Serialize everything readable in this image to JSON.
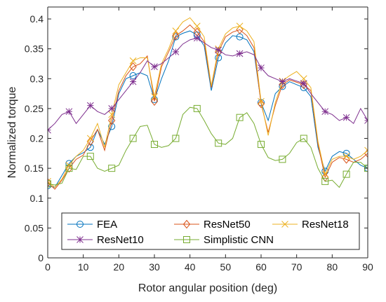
{
  "chart_data": {
    "type": "line",
    "title": "",
    "xlabel": "Rotor angular position (deg)",
    "ylabel": "Normalized torque",
    "xlim": [
      0,
      90
    ],
    "ylim": [
      0,
      0.42
    ],
    "xticks": [
      0,
      10,
      20,
      30,
      40,
      50,
      60,
      70,
      80,
      90
    ],
    "xtick_labels": [
      "0",
      "10",
      "20",
      "30",
      "40",
      "50",
      "60",
      "70",
      "80",
      "90"
    ],
    "yticks": [
      0,
      0.05,
      0.1,
      0.15,
      0.2,
      0.25,
      0.3,
      0.35,
      0.4
    ],
    "ytick_labels": [
      "0",
      "0.05",
      "0.1",
      "0.15",
      "0.2",
      "0.25",
      "0.3",
      "0.35",
      "0.4"
    ],
    "grid": false,
    "legend": "bottom, inside plot, 3 columns",
    "x": [
      0,
      2,
      4,
      6,
      8,
      10,
      12,
      14,
      16,
      18,
      20,
      22,
      24,
      26,
      28,
      30,
      32,
      34,
      36,
      38,
      40,
      42,
      44,
      46,
      48,
      50,
      52,
      54,
      56,
      58,
      60,
      62,
      64,
      66,
      68,
      70,
      72,
      74,
      76,
      78,
      80,
      82,
      84,
      86,
      88,
      90
    ],
    "series": [
      {
        "name": "FEA",
        "color": "#0072BD",
        "marker": "circle",
        "marker_every": 3,
        "values": [
          0.121,
          0.118,
          0.138,
          0.158,
          0.17,
          0.176,
          0.185,
          0.215,
          0.19,
          0.22,
          0.275,
          0.3,
          0.305,
          0.31,
          0.305,
          0.265,
          0.3,
          0.33,
          0.37,
          0.376,
          0.38,
          0.373,
          0.355,
          0.28,
          0.335,
          0.36,
          0.372,
          0.37,
          0.365,
          0.345,
          0.26,
          0.23,
          0.275,
          0.287,
          0.295,
          0.29,
          0.285,
          0.27,
          0.185,
          0.145,
          0.17,
          0.178,
          0.175,
          0.165,
          0.155,
          0.15
        ]
      },
      {
        "name": "ResNet50",
        "color": "#D95319",
        "marker": "diamond",
        "marker_every": 3,
        "values": [
          0.126,
          0.115,
          0.13,
          0.15,
          0.165,
          0.172,
          0.195,
          0.215,
          0.18,
          0.23,
          0.28,
          0.305,
          0.32,
          0.325,
          0.338,
          0.262,
          0.32,
          0.345,
          0.372,
          0.38,
          0.39,
          0.378,
          0.362,
          0.285,
          0.345,
          0.37,
          0.378,
          0.382,
          0.372,
          0.352,
          0.258,
          0.21,
          0.255,
          0.29,
          0.298,
          0.294,
          0.29,
          0.28,
          0.19,
          0.135,
          0.16,
          0.168,
          0.165,
          0.16,
          0.165,
          0.175
        ]
      },
      {
        "name": "ResNet18",
        "color": "#EDB120",
        "marker": "x",
        "marker_every": 3,
        "values": [
          0.128,
          0.118,
          0.132,
          0.155,
          0.17,
          0.18,
          0.2,
          0.225,
          0.185,
          0.24,
          0.29,
          0.31,
          0.33,
          0.335,
          0.335,
          0.27,
          0.325,
          0.35,
          0.38,
          0.395,
          0.402,
          0.388,
          0.37,
          0.288,
          0.35,
          0.375,
          0.385,
          0.388,
          0.38,
          0.362,
          0.262,
          0.205,
          0.26,
          0.296,
          0.305,
          0.312,
          0.3,
          0.285,
          0.195,
          0.14,
          0.165,
          0.17,
          0.17,
          0.165,
          0.17,
          0.18
        ]
      },
      {
        "name": "ResNet10",
        "color": "#7E2F8E",
        "marker": "asterisk",
        "marker_every": 3,
        "values": [
          0.214,
          0.225,
          0.24,
          0.245,
          0.225,
          0.24,
          0.255,
          0.245,
          0.24,
          0.25,
          0.265,
          0.28,
          0.295,
          0.31,
          0.33,
          0.32,
          0.325,
          0.335,
          0.345,
          0.358,
          0.365,
          0.368,
          0.36,
          0.352,
          0.348,
          0.34,
          0.338,
          0.342,
          0.345,
          0.34,
          0.318,
          0.305,
          0.3,
          0.295,
          0.3,
          0.296,
          0.292,
          0.275,
          0.26,
          0.245,
          0.24,
          0.23,
          0.235,
          0.225,
          0.25,
          0.23
        ]
      },
      {
        "name": "Simplistic CNN",
        "color": "#77AC30",
        "marker": "square",
        "marker_every": 3,
        "values": [
          0.124,
          0.122,
          0.125,
          0.15,
          0.148,
          0.17,
          0.17,
          0.15,
          0.145,
          0.15,
          0.155,
          0.18,
          0.2,
          0.22,
          0.222,
          0.19,
          0.185,
          0.188,
          0.2,
          0.24,
          0.252,
          0.25,
          0.23,
          0.208,
          0.192,
          0.19,
          0.2,
          0.235,
          0.243,
          0.225,
          0.19,
          0.168,
          0.163,
          0.165,
          0.175,
          0.193,
          0.2,
          0.185,
          0.15,
          0.128,
          0.13,
          0.118,
          0.14,
          0.16,
          0.16,
          0.15
        ]
      }
    ]
  }
}
